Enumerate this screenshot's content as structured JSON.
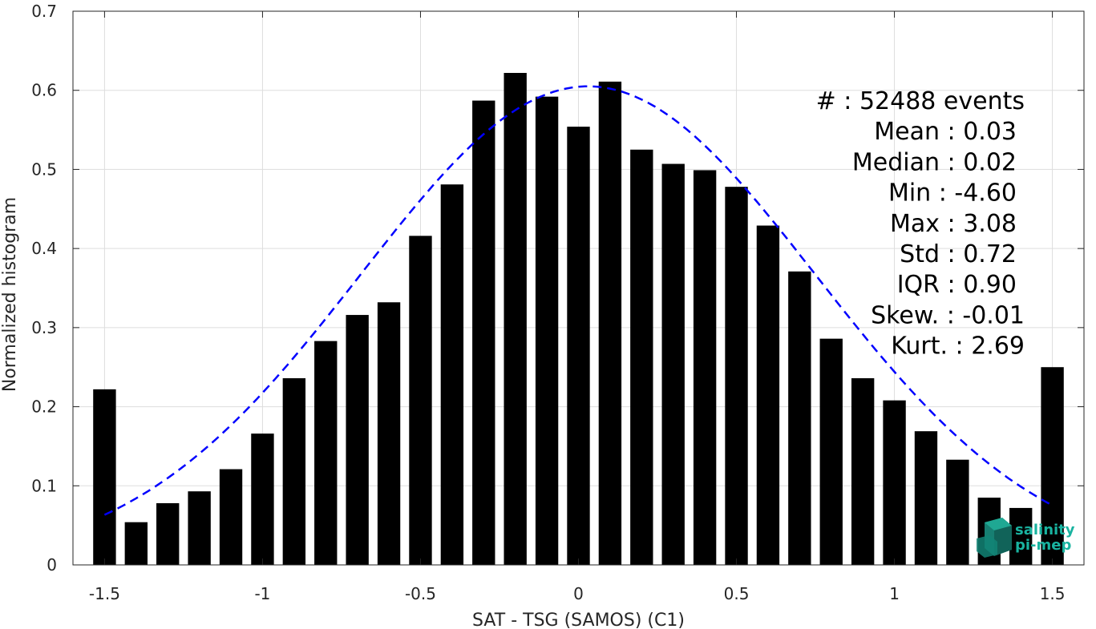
{
  "chart_data": {
    "type": "bar",
    "xlabel": "SAT - TSG (SAMOS) (C1)",
    "ylabel": "Normalized histogram",
    "xlim": [
      -1.6,
      1.6
    ],
    "ylim": [
      0,
      0.7
    ],
    "xticks": [
      -1.5,
      -1,
      -0.5,
      0,
      0.5,
      1,
      1.5
    ],
    "xtick_labels": [
      "-1.5",
      "-1",
      "-0.5",
      "0",
      "0.5",
      "1",
      "1.5"
    ],
    "yticks": [
      0,
      0.1,
      0.2,
      0.3,
      0.4,
      0.5,
      0.6,
      0.7
    ],
    "ytick_labels": [
      "0",
      "0.1",
      "0.2",
      "0.3",
      "0.4",
      "0.5",
      "0.6",
      "0.7"
    ],
    "grid": true,
    "bar_color": "#000000",
    "bin_width": 0.1,
    "bars": {
      "x": [
        -1.5,
        -1.4,
        -1.3,
        -1.2,
        -1.1,
        -1.0,
        -0.9,
        -0.8,
        -0.7,
        -0.6,
        -0.5,
        -0.4,
        -0.3,
        -0.2,
        -0.1,
        0.0,
        0.1,
        0.2,
        0.3,
        0.4,
        0.5,
        0.6,
        0.7,
        0.8,
        0.9,
        1.0,
        1.1,
        1.2,
        1.3,
        1.4,
        1.5
      ],
      "values": [
        0.222,
        0.054,
        0.078,
        0.093,
        0.121,
        0.166,
        0.236,
        0.283,
        0.316,
        0.332,
        0.416,
        0.481,
        0.587,
        0.622,
        0.592,
        0.554,
        0.611,
        0.525,
        0.507,
        0.499,
        0.478,
        0.429,
        0.371,
        0.286,
        0.236,
        0.208,
        0.169,
        0.133,
        0.085,
        0.072,
        0.25
      ]
    },
    "fit_curve": {
      "style": "dashed",
      "color": "#0000ff",
      "mean": 0.03,
      "std": 0.72,
      "peak": 0.605,
      "x_range": [
        -1.5,
        1.5
      ]
    },
    "stats": [
      "#  : 52488 events",
      "Mean : 0.03",
      "Median : 0.02",
      "Min : -4.60",
      "Max : 3.08",
      "Std : 0.72",
      "IQR : 0.90",
      "Skew. : -0.01",
      "Kurt. : 2.69"
    ],
    "logo": {
      "line1": "salinity",
      "line2": "pi-mep",
      "color": "#19b3a0"
    }
  }
}
